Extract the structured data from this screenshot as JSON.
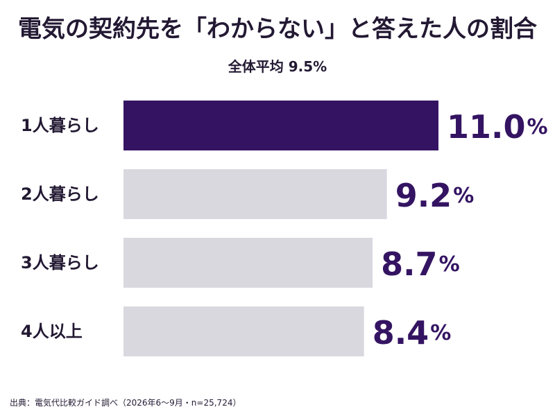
{
  "title": "電気の契約先を「わからない」と答えた人の割合",
  "subtitle": "全体平均 9.5%",
  "source": "出典：電気代比較ガイド調べ（2026年6〜9月・n=25,724）",
  "colors": {
    "highlight": "#341462",
    "bar": "#d9d8df",
    "text": "#231933"
  },
  "chart_data": {
    "type": "bar",
    "orientation": "horizontal",
    "categories": [
      "1人暮らし",
      "2人暮らし",
      "3人暮らし",
      "4人以上"
    ],
    "values": [
      11.0,
      9.2,
      8.7,
      8.4
    ],
    "value_labels": [
      "11.0",
      "9.2",
      "8.7",
      "8.4"
    ],
    "unit": "%",
    "highlight_index": 0,
    "xlim": [
      0,
      11.0
    ],
    "grid": false
  }
}
